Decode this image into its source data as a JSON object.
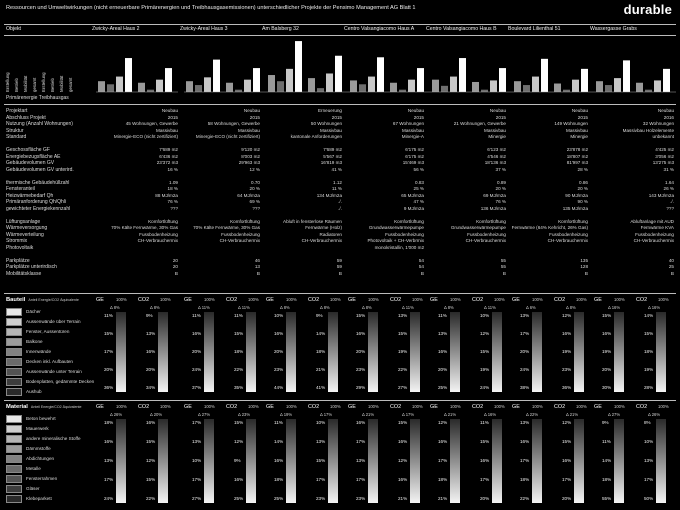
{
  "header": {
    "title": "Ressourcen und Umweltwirkungen (nicht erneuerbare Primärenergien und Treibhausgasemissionen) unterschiedlicher Projekte der Pensimo Management AG  Blatt 1",
    "brand": "durable"
  },
  "columns": [
    {
      "label": "Objekt"
    },
    {
      "label": "Zwicky-Areal Haus 2"
    },
    {
      "label": "Zwicky-Areal Haus 3"
    },
    {
      "label": "Am Balsberg 32"
    },
    {
      "label": "Centro Valsangiacomo Haus A"
    },
    {
      "label": "Centro Valsangiacomo Haus B"
    },
    {
      "label": "Boulevard Lilienthal 51"
    },
    {
      "label": "Wassergasse Grabs"
    }
  ],
  "chart_legend": {
    "labels": [
      "Erstellung",
      "Betrieb",
      "Mobilität",
      "gesamt",
      "Erstellung",
      "Betrieb",
      "Mobilität",
      "gesamt"
    ],
    "footer": "Primärenergie  Treibhausgas"
  },
  "chart_data": {
    "type": "bar",
    "categories": [
      "Zwicky-Areal Haus 2",
      "Zwicky-Areal Haus 3",
      "Am Balsberg 32",
      "Centro Valsangiacomo Haus A",
      "Centro Valsangiacomo Haus B",
      "Boulevard Lilienthal 51",
      "Wassergasse Grabs"
    ],
    "series": [
      {
        "name": "Erstellung",
        "values": [
          14,
          14,
          22,
          15,
          16,
          14,
          14
        ]
      },
      {
        "name": "Betrieb",
        "values": [
          10,
          9,
          14,
          10,
          8,
          9,
          9
        ]
      },
      {
        "name": "Mobilität",
        "values": [
          20,
          19,
          30,
          20,
          20,
          20,
          18
        ]
      },
      {
        "name": "gesamt",
        "values": [
          44,
          42,
          66,
          45,
          44,
          43,
          41
        ]
      },
      {
        "name": "Erstellung",
        "values": [
          12,
          12,
          18,
          12,
          13,
          11,
          12
        ]
      },
      {
        "name": "Betrieb",
        "values": [
          3,
          3,
          5,
          3,
          3,
          3,
          3
        ]
      },
      {
        "name": "Mobilität",
        "values": [
          16,
          16,
          24,
          16,
          15,
          16,
          15
        ]
      },
      {
        "name": "gesamt",
        "values": [
          31,
          31,
          47,
          31,
          31,
          30,
          30
        ]
      }
    ]
  },
  "props": [
    {
      "label": "Projektart",
      "values": [
        "Neubau",
        "Neubau",
        "Erneuerung",
        "Neubau",
        "Neubau",
        "Neubau",
        "Neubau"
      ]
    },
    {
      "label": "Abschluss Projekt",
      "values": [
        "2015",
        "2015",
        "2015",
        "2015",
        "2015",
        "2015",
        "2016"
      ]
    },
    {
      "label": "Nutzung (Anzahl Wohnungen)",
      "values": [
        "45 Wohnungen, Gewerbe",
        "58 Wohnungen, Gewerbe",
        "50 Wohnungen",
        "67 Wohnungen",
        "21 Wohnungen, Gewerbe",
        "149 Wohnungen",
        "32 Wohnungen"
      ]
    },
    {
      "label": "Struktur",
      "values": [
        "Massivbau",
        "Massivbau",
        "Massivbau",
        "Massivbau",
        "Massivbau",
        "Massivbau",
        "Massivbau Holzelemente"
      ]
    },
    {
      "label": "Standard",
      "values": [
        "Minergie-ECO (nicht zertifiziert)",
        "Minergie-ECO (nicht zertifiziert)",
        "kantonale Anforderungen",
        "Minergie-A",
        "Minergie",
        "Minergie",
        "unbekannt"
      ]
    },
    {
      "label": "",
      "values": [
        "",
        "",
        "",
        "",
        "",
        "",
        ""
      ]
    },
    {
      "label": "Geschossfläche GF",
      "values": [
        "7'689 m2",
        "9'120 m2",
        "7'689 m2",
        "6'175 m2",
        "6'123 m2",
        "23'878 m2",
        "4'425 m2"
      ]
    },
    {
      "label": "Energiebezugsfläche AE",
      "values": [
        "6'436 m2",
        "8'003 m2",
        "5'567 m2",
        "6'175 m2",
        "4'546 m2",
        "18'807 m2",
        "3'056 m2"
      ]
    },
    {
      "label": "Gebäudevolumen GV",
      "values": [
        "23'372 m3",
        "29'963 m3",
        "16'819 m3",
        "15'469 m3",
        "18'136 m3",
        "81'997 m3",
        "13'275 m3"
      ]
    },
    {
      "label": "Gebäudevolumen GV unterird.",
      "values": [
        "16 %",
        "12 %",
        "41 %",
        "56 %",
        "37 %",
        "28 %",
        "31 %"
      ]
    },
    {
      "label": "",
      "values": [
        "",
        "",
        "",
        "",
        "",
        "",
        ""
      ]
    },
    {
      "label": "thermische Gebäudehüllzahl",
      "values": [
        "1.09",
        "0.70",
        "1.12",
        "0.83",
        "0.89",
        "0.86",
        "1.64"
      ]
    },
    {
      "label": "Fensteranteil",
      "values": [
        "18 %",
        "20 %",
        "11 %",
        "25 %",
        "20 %",
        "20 %",
        "26 %"
      ]
    },
    {
      "label": "Heizwärmebedarf Qh",
      "values": [
        "88 MJ/m2a",
        "64 MJ/m2a",
        "134 MJ/m2a",
        "65 MJ/m2a",
        "69 MJ/m2a",
        "90 MJ/m2a",
        "143 MJ/m2a"
      ]
    },
    {
      "label": "Primäranforderung Qh/Qhli",
      "values": [
        "76 %",
        "69 %",
        "./.",
        "47 %",
        "76 %",
        "90 %",
        "./."
      ]
    },
    {
      "label": "gewichteter Energiekennzahl",
      "values": [
        "???",
        "???",
        "./.",
        "9 MJ/m2a",
        "136 MJ/m2a",
        "135 MJ/m2a",
        "???"
      ]
    },
    {
      "label": "",
      "values": [
        "",
        "",
        "",
        "",
        "",
        "",
        ""
      ]
    },
    {
      "label": "Lüftungsanlage",
      "values": [
        "Komfortlüftung",
        "Komfortlüftung",
        "Abluft in fensterlose Räumen",
        "Komfortlüftung",
        "Komfortlüftung",
        "Komfortlüftung",
        "Abluftanlage mit AUD"
      ]
    },
    {
      "label": "Wärmeversorgung",
      "values": [
        "70% Kälte Fernwärme, 30% Gas",
        "70% Kälte Fernwärme, 30% Gas",
        "Fernwärme (Holz)",
        "Grundwasserwärmepumpe",
        "Grundwasserwärmepumpe",
        "Fernwärme (64% Kehricht, 26% Gas)",
        "Fernwärme KVA"
      ]
    },
    {
      "label": "Wärmeverteilung",
      "values": [
        "Fussbodenheizung",
        "Fussbodenheizung",
        "Radiatoren",
        "Fussbodenheizung",
        "Fussbodenheizung",
        "Fussbodenheizung",
        "Fussbodenheizung"
      ]
    },
    {
      "label": "Strommix",
      "values": [
        "CH-Verbrauchermix",
        "CH-Verbrauchermix",
        "CH-Verbrauchermix",
        "Photovoltaik + CH-Verbrmix",
        "CH-Verbrauchermix",
        "CH-Verbrauchermix",
        "CH-Verbrauchermix"
      ]
    },
    {
      "label": "Photovoltaik",
      "values": [
        "",
        "",
        "",
        "monokristallin, 1'000 m2",
        "",
        "",
        ""
      ]
    },
    {
      "label": "",
      "values": [
        "",
        "",
        "",
        "",
        "",
        "",
        ""
      ]
    },
    {
      "label": "Parkplätze",
      "values": [
        "20",
        "46",
        "59",
        "54",
        "55",
        "135",
        "40"
      ]
    },
    {
      "label": "Parkplätze unterirdisch",
      "values": [
        "20",
        "13",
        "59",
        "54",
        "55",
        "128",
        "25"
      ]
    },
    {
      "label": "Mobilitätsklasse",
      "values": [
        "B",
        "B",
        "B",
        "B",
        "B",
        "B",
        "B"
      ]
    }
  ],
  "bauteil": {
    "title": "Bauteil",
    "subtitle": "Anteil Energie/CO2 Äquivalente",
    "legend": [
      "Dächer",
      "Aussenwände über Terrain",
      "Fenster, Aussentüren",
      "Balkone",
      "Innenwände",
      "Decken inkl. Aufbauten",
      "Aussenwände unter Terrain",
      "Bodenplatten, gedämmte Decken",
      "Aushub"
    ],
    "swatches": [
      "#e8e8e8",
      "#cfcfcf",
      "#b5b5b5",
      "#9c9c9c",
      "#828282",
      "#6a6a6a",
      "#535353",
      "#3d3d3d",
      "#2a2a2a"
    ],
    "gheads": [
      "GE",
      "100%",
      "CO2",
      "100%"
    ],
    "top_labels": [
      [
        "Δ 8%",
        "Δ 8%"
      ],
      [
        "Δ 11%",
        "Δ 11%"
      ],
      [
        "Δ 8%",
        "Δ 8%"
      ],
      [
        "Δ 8%",
        "Δ 11%"
      ],
      [
        "Δ 8%",
        "Δ 11%"
      ],
      [
        "Δ 6%",
        "Δ 8%"
      ],
      [
        "Δ 16%",
        "Δ 16%"
      ]
    ],
    "values": [
      [
        "11%",
        "15%",
        "17%",
        "20%",
        "36%"
      ],
      [
        "11%",
        "16%",
        "20%",
        "24%",
        "37%"
      ],
      [
        "10%",
        "16%",
        "20%",
        "23%",
        "44%"
      ],
      [
        "15%",
        "16%",
        "20%",
        "23%",
        "29%"
      ],
      [
        "11%",
        "13%",
        "16%",
        "20%",
        "25%"
      ],
      [
        "13%",
        "17%",
        "20%",
        "24%",
        "38%"
      ],
      [
        "15%",
        "16%",
        "19%",
        "20%",
        "30%"
      ]
    ],
    "co2_values": [
      [
        "9%",
        "13%",
        "16%",
        "20%",
        "34%"
      ],
      [
        "11%",
        "15%",
        "18%",
        "22%",
        "35%"
      ],
      [
        "9%",
        "14%",
        "18%",
        "21%",
        "41%"
      ],
      [
        "13%",
        "15%",
        "19%",
        "22%",
        "27%"
      ],
      [
        "10%",
        "12%",
        "15%",
        "19%",
        "24%"
      ],
      [
        "12%",
        "16%",
        "19%",
        "23%",
        "36%"
      ],
      [
        "14%",
        "15%",
        "18%",
        "19%",
        "28%"
      ]
    ]
  },
  "material": {
    "title": "Material",
    "subtitle": "Anteil Energie/CO2 Äquivalente",
    "legend": [
      "Beton bewehrt",
      "Mauerwerk",
      "andere mineralische Stoffe",
      "Dämmstoffe",
      "Abdichtungen",
      "Metalle",
      "Fensterrahmen",
      "Gläser",
      "Klebeparkett"
    ],
    "swatches": [
      "#e8e8e8",
      "#cfcfcf",
      "#b5b5b5",
      "#9c9c9c",
      "#828282",
      "#6a6a6a",
      "#535353",
      "#3d3d3d",
      "#2a2a2a"
    ],
    "gheads": [
      "GE",
      "100%",
      "CO2",
      "100%"
    ],
    "top_labels": [
      [
        "Δ 26%",
        "Δ 20%"
      ],
      [
        "Δ 27%",
        "Δ 23%"
      ],
      [
        "Δ 19%",
        "Δ 17%"
      ],
      [
        "Δ 21%",
        "Δ 17%"
      ],
      [
        "Δ 21%",
        "Δ 16%"
      ],
      [
        "Δ 22%",
        "Δ 21%"
      ],
      [
        "Δ 27%",
        "Δ 26%"
      ]
    ],
    "values": [
      [
        "18%",
        "16%",
        "13%",
        "17%",
        "24%"
      ],
      [
        "17%",
        "13%",
        "10%",
        "17%",
        "27%"
      ],
      [
        "11%",
        "14%",
        "16%",
        "18%",
        "25%"
      ],
      [
        "16%",
        "17%",
        "13%",
        "17%",
        "23%"
      ],
      [
        "12%",
        "16%",
        "17%",
        "18%",
        "21%"
      ],
      [
        "13%",
        "16%",
        "17%",
        "18%",
        "22%"
      ],
      [
        "9%",
        "11%",
        "14%",
        "18%",
        "55%"
      ]
    ],
    "co2_values": [
      [
        "16%",
        "15%",
        "12%",
        "15%",
        "22%"
      ],
      [
        "15%",
        "12%",
        "9%",
        "16%",
        "25%"
      ],
      [
        "10%",
        "13%",
        "15%",
        "17%",
        "23%"
      ],
      [
        "15%",
        "16%",
        "12%",
        "16%",
        "21%"
      ],
      [
        "11%",
        "15%",
        "16%",
        "17%",
        "20%"
      ],
      [
        "12%",
        "15%",
        "16%",
        "17%",
        "20%"
      ],
      [
        "8%",
        "10%",
        "13%",
        "17%",
        "50%"
      ]
    ]
  }
}
